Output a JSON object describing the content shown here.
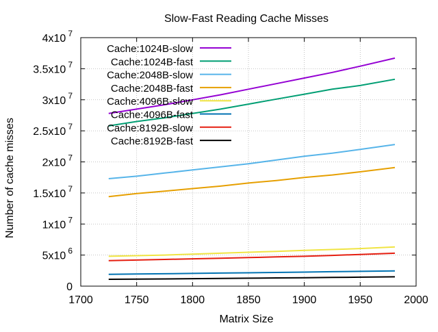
{
  "chart_data": {
    "type": "line",
    "title": "Slow-Fast Reading Cache Misses",
    "xlabel": "Matrix Size",
    "ylabel": "Number of cache misses",
    "xlim": [
      1700,
      2000
    ],
    "ylim": [
      0,
      40000000
    ],
    "grid": true,
    "legend_position": "top-left",
    "x_ticks": [
      {
        "value": 1700,
        "label": "1700"
      },
      {
        "value": 1750,
        "label": "1750"
      },
      {
        "value": 1800,
        "label": "1800"
      },
      {
        "value": 1850,
        "label": "1850"
      },
      {
        "value": 1900,
        "label": "1900"
      },
      {
        "value": 1950,
        "label": "1950"
      },
      {
        "value": 2000,
        "label": "2000"
      }
    ],
    "y_ticks": [
      {
        "value": 0,
        "mantissa": "0",
        "exponent": ""
      },
      {
        "value": 5000000,
        "mantissa": "5x10",
        "exponent": "6"
      },
      {
        "value": 10000000,
        "mantissa": "1x10",
        "exponent": "7"
      },
      {
        "value": 15000000,
        "mantissa": "1.5x10",
        "exponent": "7"
      },
      {
        "value": 20000000,
        "mantissa": "2x10",
        "exponent": "7"
      },
      {
        "value": 25000000,
        "mantissa": "2.5x10",
        "exponent": "7"
      },
      {
        "value": 30000000,
        "mantissa": "3x10",
        "exponent": "7"
      },
      {
        "value": 35000000,
        "mantissa": "3.5x10",
        "exponent": "7"
      },
      {
        "value": 40000000,
        "mantissa": "4x10",
        "exponent": "7"
      }
    ],
    "series": [
      {
        "name": "Cache:1024B-slow",
        "color": "#9400d3",
        "x": [
          1725,
          1750,
          1775,
          1800,
          1825,
          1850,
          1875,
          1900,
          1925,
          1950,
          1981
        ],
        "y": [
          27800000,
          28500000,
          29200000,
          30000000,
          30800000,
          31700000,
          32600000,
          33500000,
          34400000,
          35400000,
          36700000
        ]
      },
      {
        "name": "Cache:1024B-fast",
        "color": "#009e73",
        "x": [
          1725,
          1750,
          1775,
          1800,
          1825,
          1850,
          1875,
          1900,
          1925,
          1950,
          1981
        ],
        "y": [
          25800000,
          26500000,
          27100000,
          27800000,
          28500000,
          29300000,
          30100000,
          30900000,
          31700000,
          32300000,
          33300000
        ]
      },
      {
        "name": "Cache:2048B-slow",
        "color": "#56b4e9",
        "x": [
          1725,
          1750,
          1775,
          1800,
          1825,
          1850,
          1875,
          1900,
          1925,
          1950,
          1981
        ],
        "y": [
          17300000,
          17700000,
          18200000,
          18700000,
          19200000,
          19700000,
          20300000,
          20900000,
          21400000,
          22000000,
          22800000
        ]
      },
      {
        "name": "Cache:2048B-fast",
        "color": "#e69f00",
        "x": [
          1725,
          1750,
          1775,
          1800,
          1825,
          1850,
          1875,
          1900,
          1925,
          1950,
          1981
        ],
        "y": [
          14400000,
          14900000,
          15300000,
          15700000,
          16100000,
          16600000,
          17000000,
          17500000,
          17900000,
          18400000,
          19100000
        ]
      },
      {
        "name": "Cache:4096B-slow",
        "color": "#f0e442",
        "x": [
          1725,
          1750,
          1775,
          1800,
          1825,
          1850,
          1875,
          1900,
          1925,
          1950,
          1981
        ],
        "y": [
          4800000,
          4900000,
          5000000,
          5150000,
          5300000,
          5450000,
          5600000,
          5750000,
          5900000,
          6050000,
          6300000
        ]
      },
      {
        "name": "Cache:4096B-fast",
        "color": "#0072b2",
        "x": [
          1725,
          1750,
          1775,
          1800,
          1825,
          1850,
          1875,
          1900,
          1925,
          1950,
          1981
        ],
        "y": [
          1900000,
          1950000,
          2000000,
          2050000,
          2100000,
          2150000,
          2200000,
          2260000,
          2320000,
          2380000,
          2450000
        ]
      },
      {
        "name": "Cache:8192B-slow",
        "color": "#e51e10",
        "x": [
          1725,
          1750,
          1775,
          1800,
          1825,
          1850,
          1875,
          1900,
          1925,
          1950,
          1981
        ],
        "y": [
          4100000,
          4200000,
          4300000,
          4400000,
          4500000,
          4600000,
          4700000,
          4800000,
          4950000,
          5100000,
          5300000
        ]
      },
      {
        "name": "Cache:8192B-fast",
        "color": "#000000",
        "x": [
          1725,
          1750,
          1775,
          1800,
          1825,
          1850,
          1875,
          1900,
          1925,
          1950,
          1981
        ],
        "y": [
          1100000,
          1130000,
          1160000,
          1200000,
          1240000,
          1280000,
          1320000,
          1360000,
          1400000,
          1440000,
          1500000
        ]
      }
    ]
  }
}
